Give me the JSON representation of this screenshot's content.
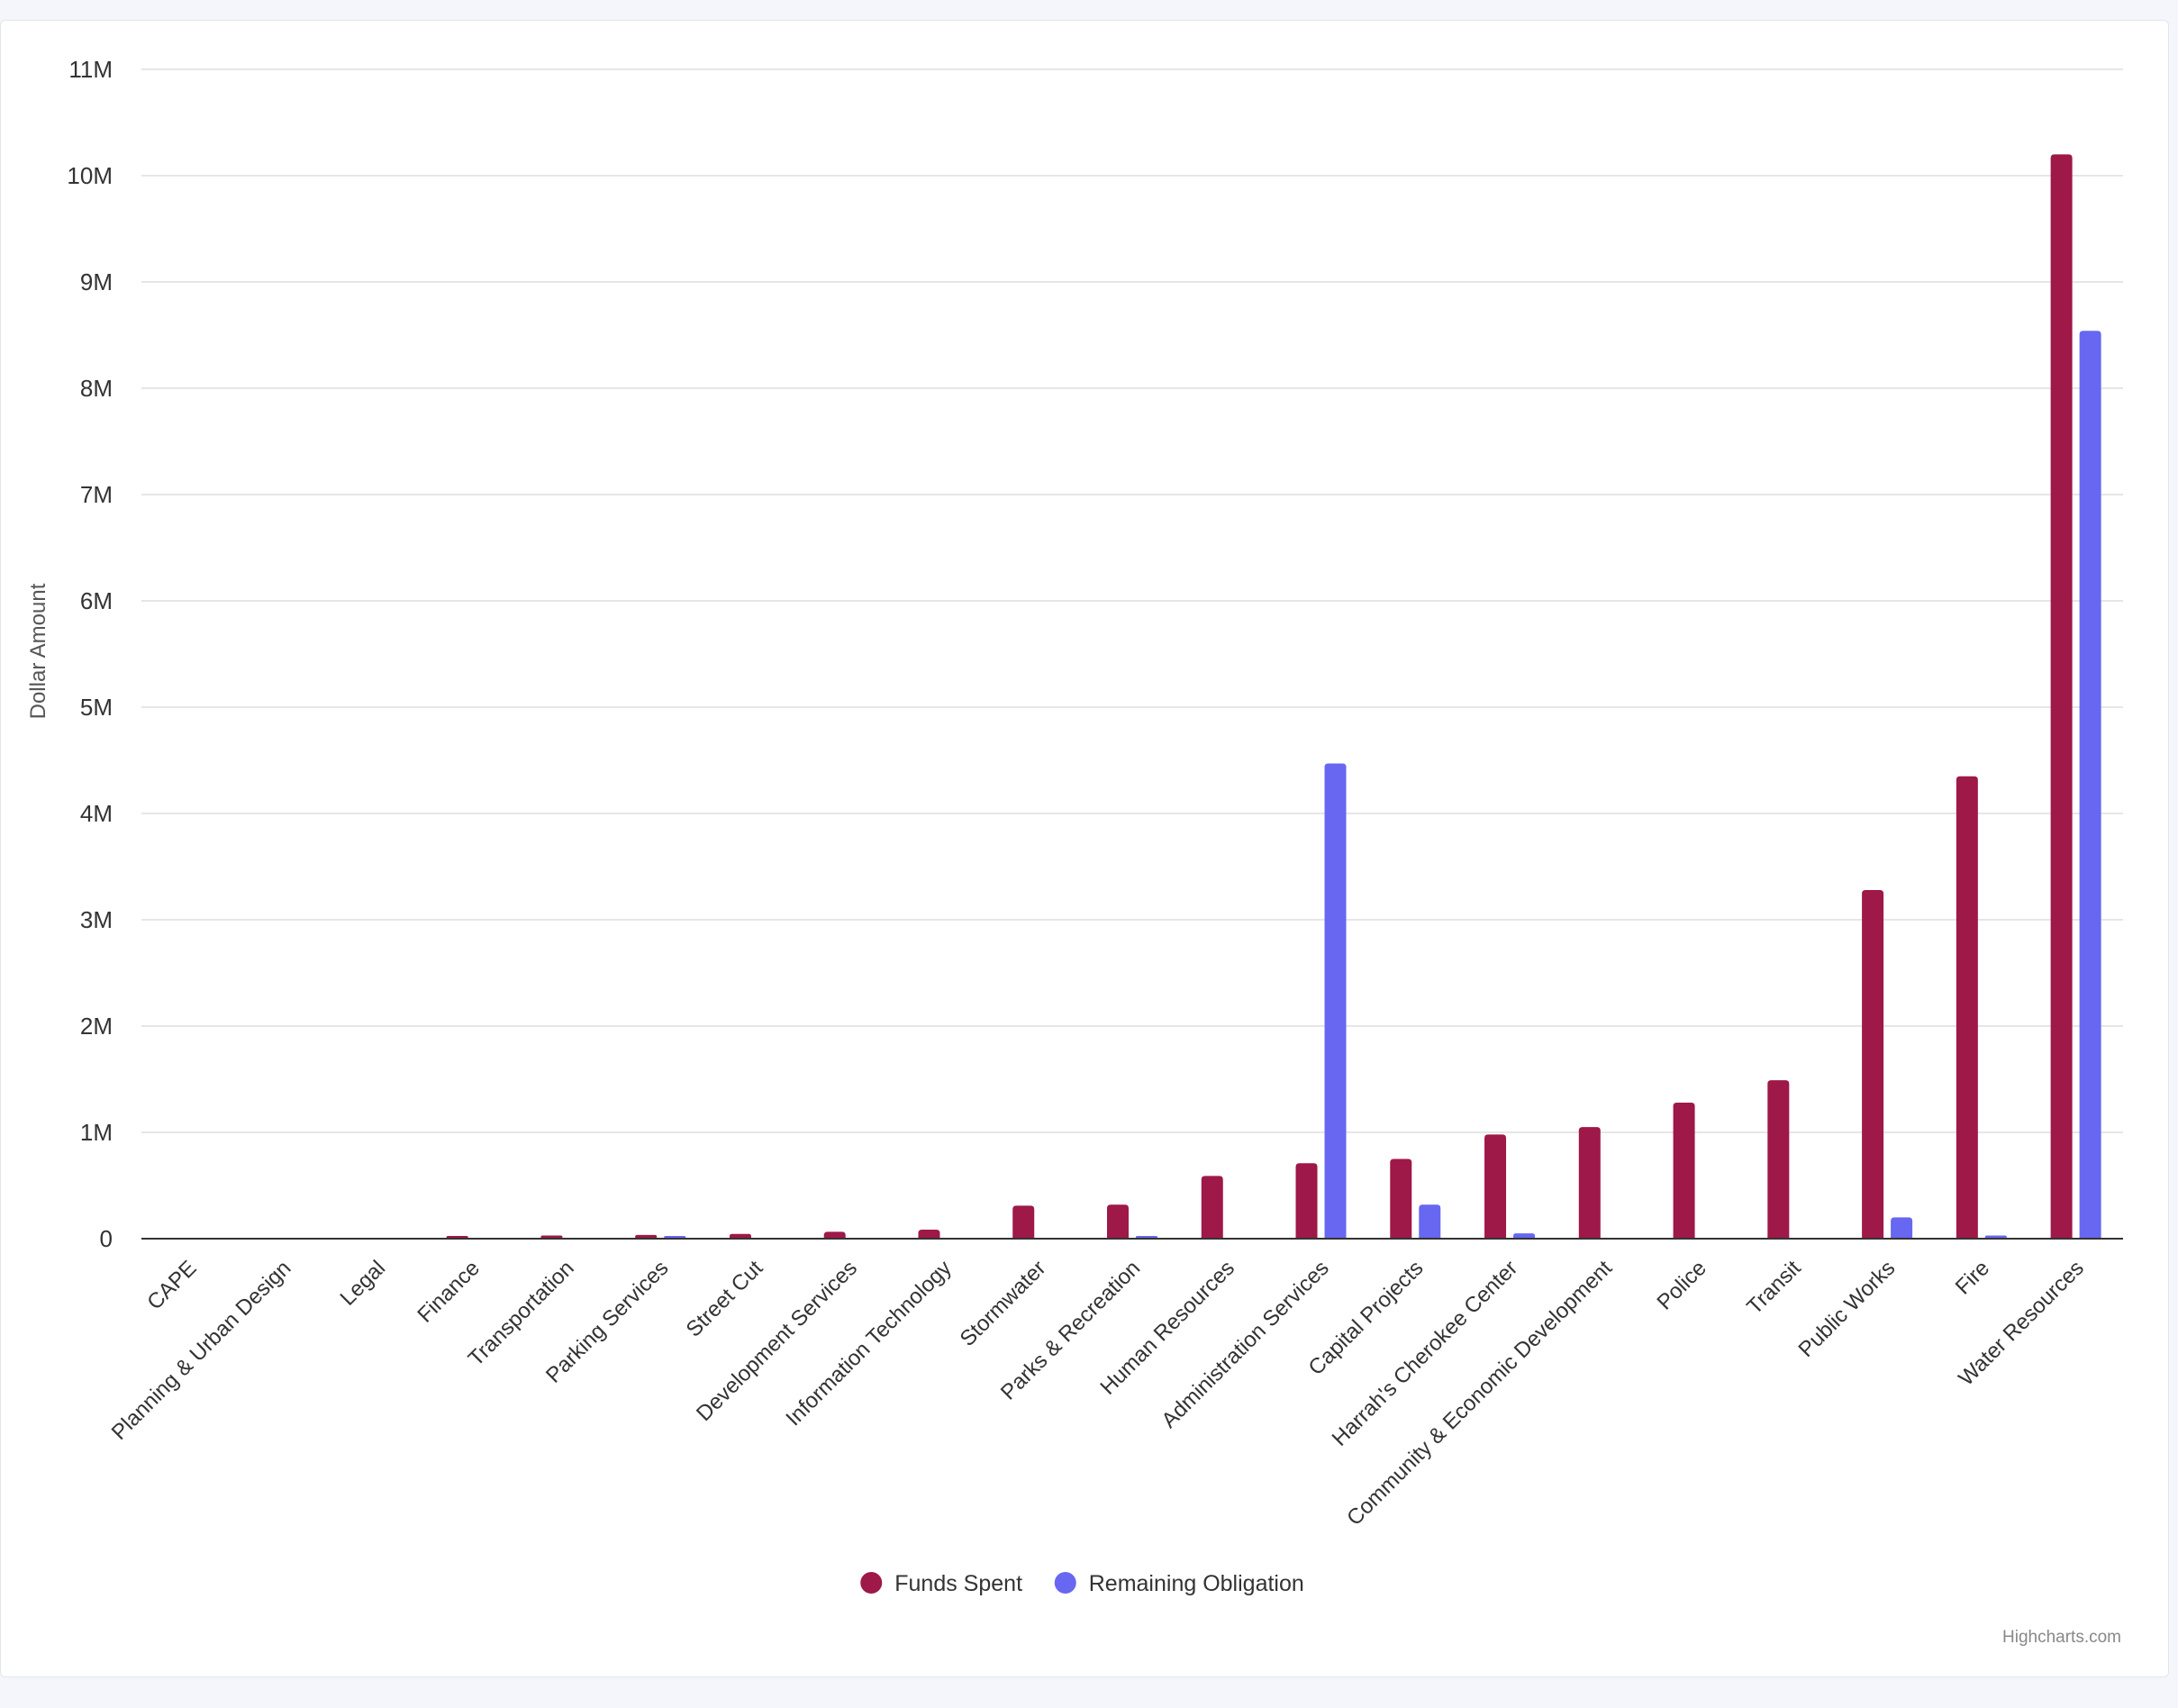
{
  "chart_data": {
    "type": "bar",
    "title": "",
    "xlabel": "",
    "ylabel": "Dollar Amount",
    "ylim": [
      0,
      11000000
    ],
    "yticks": [
      0,
      1000000,
      2000000,
      3000000,
      4000000,
      5000000,
      6000000,
      7000000,
      8000000,
      9000000,
      10000000,
      11000000
    ],
    "ytick_labels": [
      "0",
      "1M",
      "2M",
      "3M",
      "4M",
      "5M",
      "6M",
      "7M",
      "8M",
      "9M",
      "10M",
      "11M"
    ],
    "grid": true,
    "legend_position": "bottom-center",
    "categories": [
      "CAPE",
      "Planning & Urban Design",
      "Legal",
      "Finance",
      "Transportation",
      "Parking Services",
      "Street Cut",
      "Development Services",
      "Information Technology",
      "Stormwater",
      "Parks & Recreation",
      "Human Resources",
      "Administration Services",
      "Capital Projects",
      "Harrah's Cherokee Center",
      "Community & Economic Development",
      "Police",
      "Transit",
      "Public Works",
      "Fire",
      "Water Resources"
    ],
    "series": [
      {
        "name": "Funds Spent",
        "color": "#9e1848",
        "values": [
          0,
          0,
          0,
          10000,
          30000,
          35000,
          45000,
          65000,
          85000,
          310000,
          320000,
          590000,
          710000,
          750000,
          980000,
          1050000,
          1280000,
          1490000,
          3280000,
          4350000,
          10200000
        ]
      },
      {
        "name": "Remaining Obligation",
        "color": "#6767f1",
        "values": [
          0,
          0,
          0,
          0,
          0,
          10000,
          0,
          0,
          0,
          0,
          15000,
          0,
          4470000,
          320000,
          50000,
          0,
          0,
          0,
          200000,
          30000,
          8540000
        ]
      }
    ]
  },
  "credits": "Highcharts.com"
}
